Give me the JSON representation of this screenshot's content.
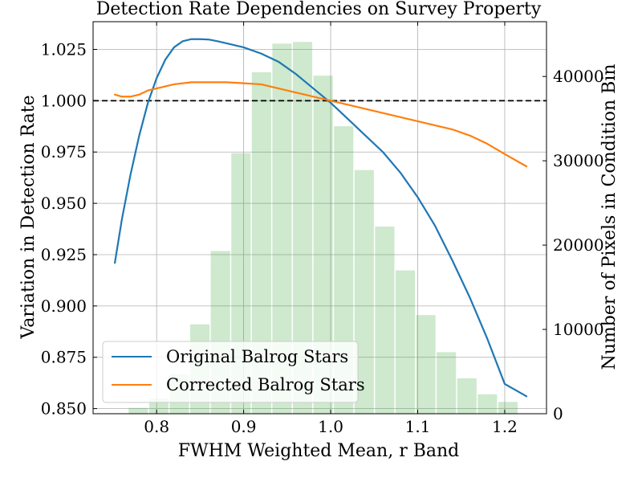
{
  "chart_data": {
    "type": "line",
    "title": "Detection Rate Dependencies on Survey Property",
    "xlabel": "FWHM Weighted Mean, r Band",
    "ylabel": "Variation in Detection Rate",
    "y2label": "Number of Pixels in Condition Bin",
    "xlim": [
      0.727,
      1.248
    ],
    "ylim": [
      0.8475,
      1.0385
    ],
    "y2lim": [
      0,
      46500
    ],
    "x_ticks": [
      0.8,
      0.9,
      1.0,
      1.1,
      1.2
    ],
    "x_tick_labels": [
      "0.8",
      "0.9",
      "1.0",
      "1.1",
      "1.2"
    ],
    "y_ticks": [
      0.85,
      0.875,
      0.9,
      0.925,
      0.95,
      0.975,
      1.0,
      1.025
    ],
    "y_tick_labels": [
      "0.850",
      "0.875",
      "0.900",
      "0.925",
      "0.950",
      "0.975",
      "1.000",
      "1.025"
    ],
    "y2_ticks": [
      0,
      10000,
      20000,
      30000,
      40000
    ],
    "y2_tick_labels": [
      "0",
      "10000",
      "20000",
      "30000",
      "40000"
    ],
    "reference_line": {
      "y": 1.0,
      "style": "dashed",
      "color": "#000000"
    },
    "grid": true,
    "legend_position": "bottom-left",
    "histogram": {
      "color": "#2ca02c",
      "opacity": 0.23,
      "bin_width": 0.0236,
      "bin_centers": [
        0.756,
        0.7796,
        0.8032,
        0.8268,
        0.8504,
        0.874,
        0.8976,
        0.9212,
        0.9448,
        0.9684,
        0.992,
        1.0156,
        1.0392,
        1.0628,
        1.0864,
        1.11,
        1.1336,
        1.1572,
        1.1808,
        1.2044,
        1.228
      ],
      "counts": [
        50,
        700,
        1800,
        4700,
        10600,
        19300,
        30900,
        40500,
        43900,
        44100,
        40100,
        34100,
        28900,
        22200,
        17000,
        11700,
        7300,
        4200,
        2300,
        1400,
        0
      ]
    },
    "series": [
      {
        "name": "Original Balrog Stars",
        "color": "#1f77b4",
        "x": [
          0.752,
          0.76,
          0.77,
          0.78,
          0.79,
          0.8,
          0.81,
          0.82,
          0.83,
          0.84,
          0.85,
          0.86,
          0.87,
          0.88,
          0.9,
          0.92,
          0.94,
          0.96,
          0.98,
          1.0,
          1.02,
          1.04,
          1.06,
          1.08,
          1.1,
          1.12,
          1.14,
          1.16,
          1.18,
          1.2,
          1.225
        ],
        "y": [
          0.921,
          0.942,
          0.964,
          0.983,
          0.999,
          1.011,
          1.02,
          1.026,
          1.029,
          1.03,
          1.03,
          1.0298,
          1.029,
          1.028,
          1.026,
          1.023,
          1.019,
          1.013,
          1.006,
          0.999,
          0.991,
          0.983,
          0.975,
          0.965,
          0.953,
          0.939,
          0.922,
          0.904,
          0.884,
          0.862,
          0.856
        ]
      },
      {
        "name": "Corrected Balrog Stars",
        "color": "#ff7f0e",
        "x": [
          0.752,
          0.76,
          0.77,
          0.78,
          0.79,
          0.8,
          0.82,
          0.84,
          0.86,
          0.88,
          0.9,
          0.92,
          0.94,
          0.96,
          0.98,
          1.0,
          1.02,
          1.04,
          1.06,
          1.08,
          1.1,
          1.12,
          1.14,
          1.16,
          1.18,
          1.2,
          1.225
        ],
        "y": [
          1.003,
          1.002,
          1.002,
          1.003,
          1.005,
          1.006,
          1.008,
          1.009,
          1.009,
          1.009,
          1.0085,
          1.008,
          1.006,
          1.004,
          1.002,
          1.0,
          0.998,
          0.996,
          0.994,
          0.992,
          0.99,
          0.988,
          0.986,
          0.983,
          0.979,
          0.974,
          0.968
        ]
      }
    ]
  }
}
